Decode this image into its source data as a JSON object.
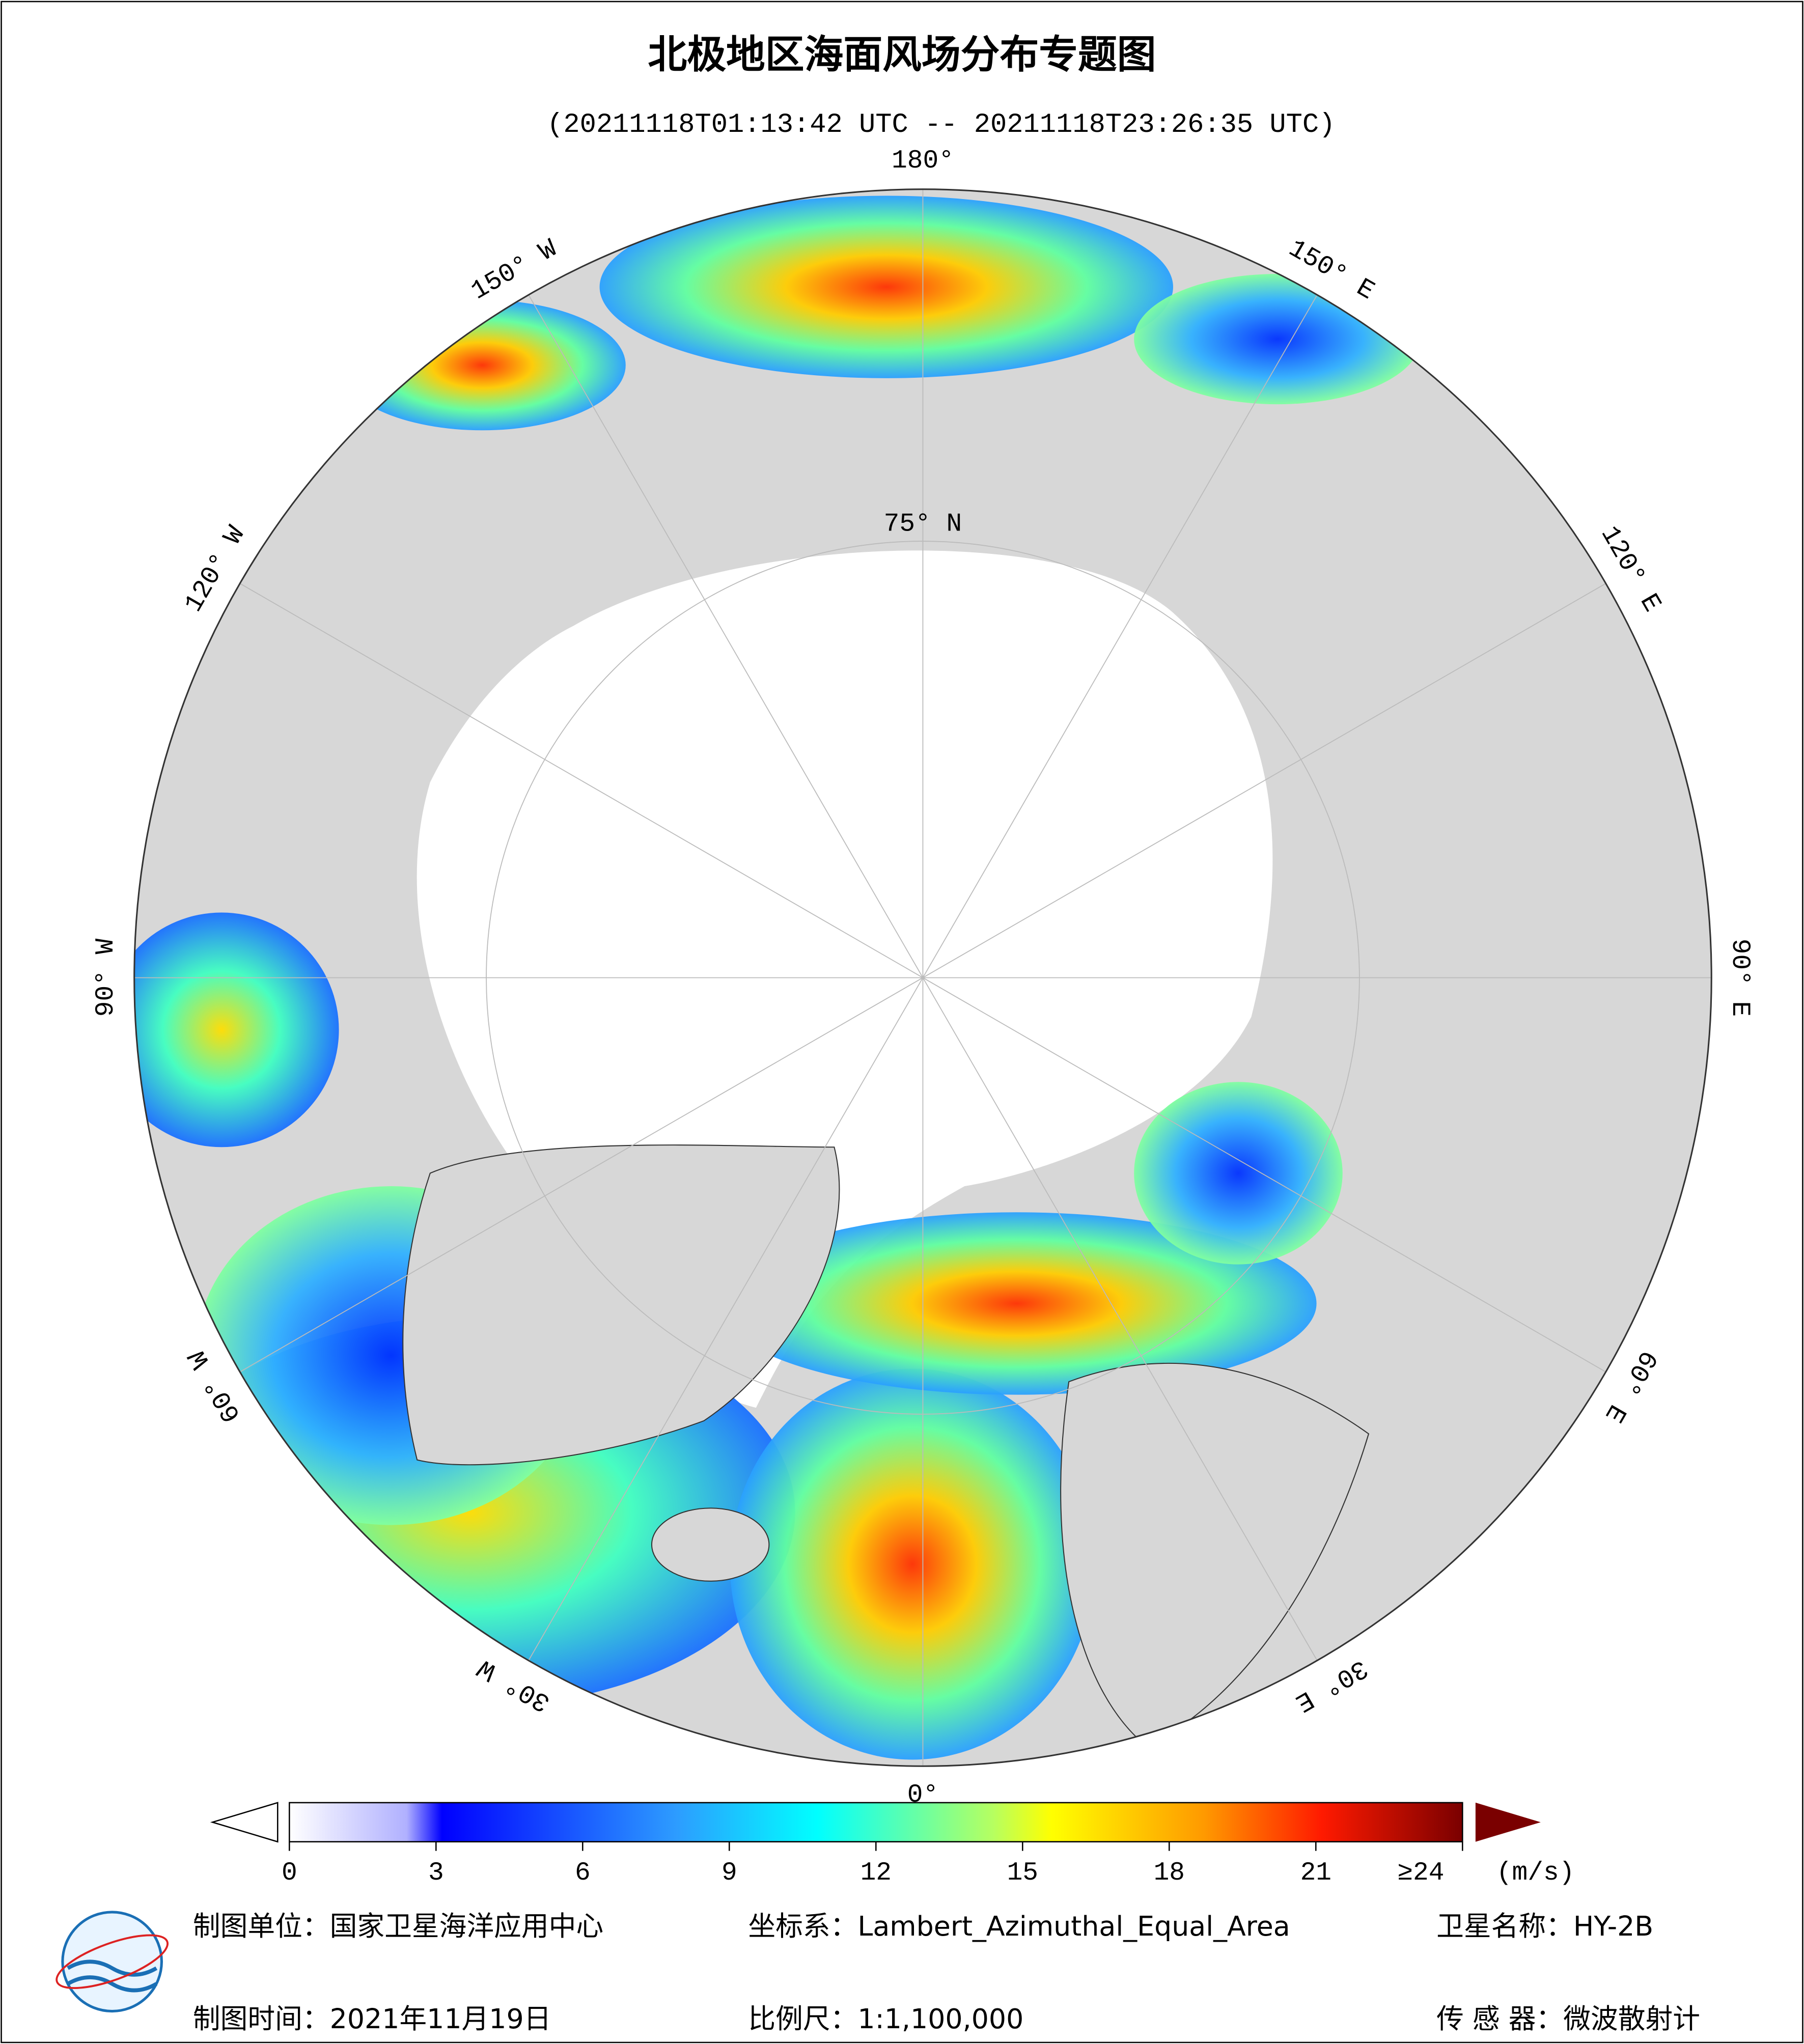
{
  "header": {
    "title": "北极地区海面风场分布专题图",
    "subtitle": "(20211118T01:13:42 UTC -- 20211118T23:26:35 UTC)"
  },
  "map": {
    "longitude_labels": [
      {
        "value": 180,
        "label": "180°"
      },
      {
        "value": 150,
        "label": "150° E"
      },
      {
        "value": 120,
        "label": "120° E"
      },
      {
        "value": 90,
        "label": "90° E"
      },
      {
        "value": 60,
        "label": "60° E"
      },
      {
        "value": 30,
        "label": "30° E"
      },
      {
        "value": 0,
        "label": "0°"
      },
      {
        "value": -30,
        "label": "30° W"
      },
      {
        "value": -60,
        "label": "60° W"
      },
      {
        "value": -90,
        "label": "90° W"
      },
      {
        "value": -120,
        "label": "120° W"
      },
      {
        "value": -150,
        "label": "150° W"
      }
    ],
    "latitude_labels": [
      {
        "value": 75,
        "label": "75° N"
      }
    ]
  },
  "colorbar": {
    "range": [
      0,
      24
    ],
    "ticks": [
      0,
      3,
      6,
      9,
      12,
      15,
      18,
      21,
      {
        "value": 24,
        "label": "≥24"
      }
    ],
    "unit": "(m/s)"
  },
  "footer": {
    "organization": "制图单位：国家卫星海洋应用中心",
    "coordinate_system": "坐标系：Lambert_Azimuthal_Equal_Area",
    "satellite": "卫星名称：HY-2B",
    "date": "制图时间：2021年11月19日",
    "scale": "比例尺：1:1,100,000",
    "sensor": "传 感 器：微波散射计"
  }
}
